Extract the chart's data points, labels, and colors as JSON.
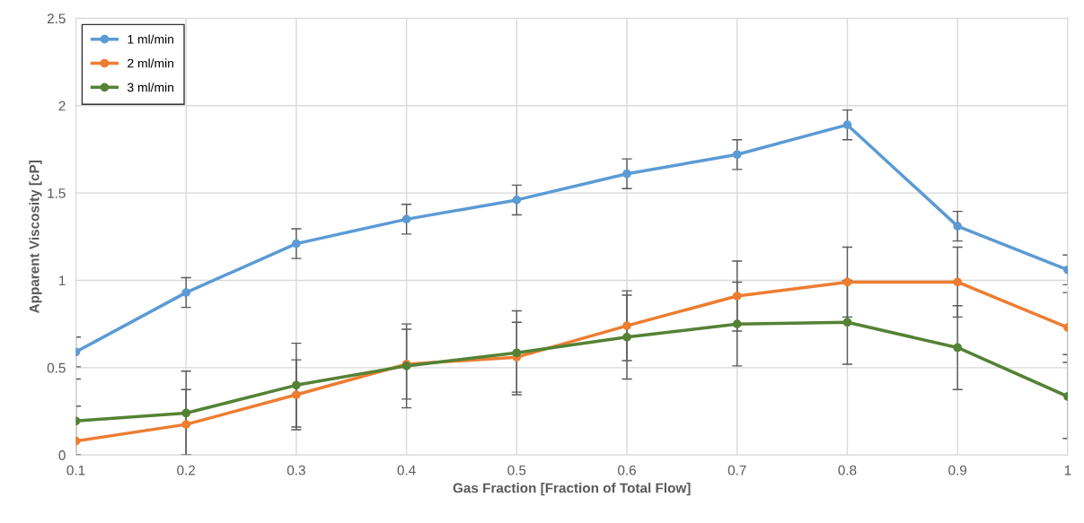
{
  "chart_data": {
    "type": "line",
    "xlabel": "Gas Fraction [Fraction of Total Flow]",
    "ylabel": "Apparent Viscosity [cP]",
    "x": [
      0.1,
      0.2,
      0.3,
      0.4,
      0.5,
      0.6,
      0.7,
      0.8,
      0.9,
      1
    ],
    "series": [
      {
        "name": "1 ml/min",
        "color": "#5b9bd5",
        "values": [
          0.59,
          0.93,
          1.21,
          1.35,
          1.46,
          1.61,
          1.72,
          1.89,
          1.31,
          1.06
        ],
        "errors": [
          0.085,
          0.085,
          0.085,
          0.085,
          0.085,
          0.085,
          0.085,
          0.085,
          0.085,
          0.085
        ]
      },
      {
        "name": "2 ml/min",
        "color": "#ed7d31",
        "values": [
          0.08,
          0.175,
          0.345,
          0.52,
          0.56,
          0.74,
          0.91,
          0.99,
          0.99,
          0.73
        ],
        "errors": [
          [
            0,
            0.28
          ],
          [
            0,
            0.375
          ],
          0.2,
          0.2,
          0.2,
          0.2,
          0.2,
          0.2,
          0.2,
          0.2
        ]
      },
      {
        "name": "3 ml/min",
        "color": "#548235",
        "values": [
          0.195,
          0.24,
          0.4,
          0.51,
          0.585,
          0.675,
          0.75,
          0.76,
          0.615,
          0.335
        ],
        "errors": [
          [
            0,
            0.435
          ],
          0.24,
          0.24,
          0.24,
          0.24,
          0.24,
          0.24,
          0.24,
          0.24,
          0.24
        ]
      }
    ],
    "xlim": [
      0.1,
      1
    ],
    "xticks": [
      0.1,
      0.2,
      0.3,
      0.4,
      0.5,
      0.6,
      0.7,
      0.8,
      0.9,
      1
    ],
    "ylim": [
      0,
      2.5
    ],
    "yticks": [
      0,
      0.5,
      1,
      1.5,
      2,
      2.5
    ],
    "grid": true,
    "legend": "top left",
    "marker": "circle",
    "line_style": "solid"
  }
}
